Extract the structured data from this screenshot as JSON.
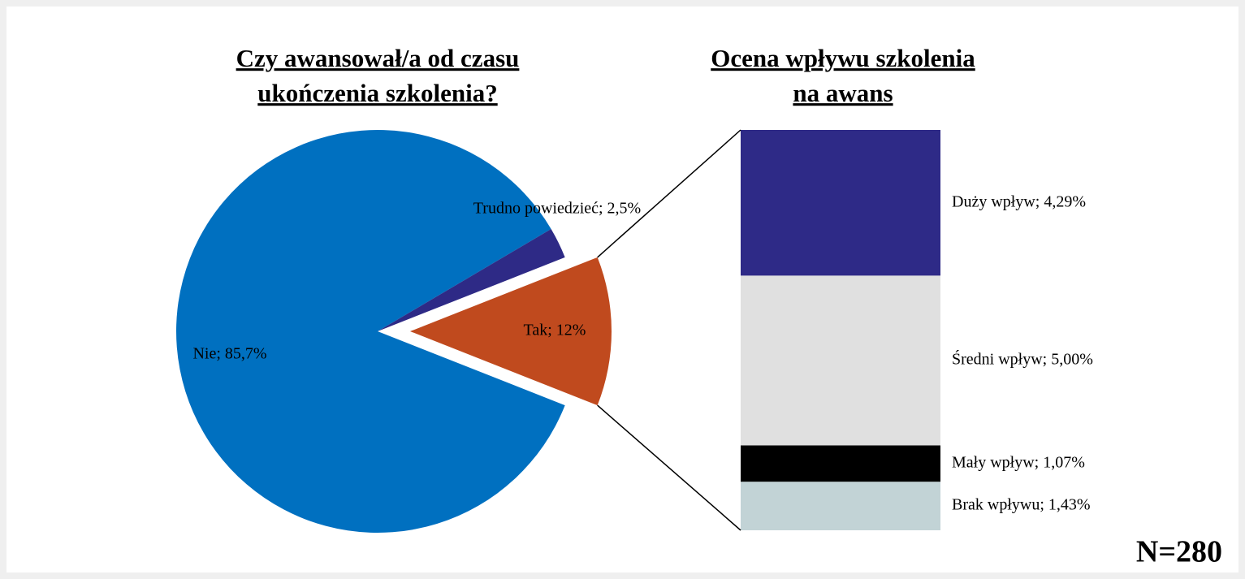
{
  "chart_data": [
    {
      "type": "pie",
      "title": [
        "Czy awansował/a od czasu",
        "ukończenia szkolenia?"
      ],
      "values": [
        12,
        85.7,
        2.5
      ],
      "value_labels": [
        "Tak; 12%",
        "Nie; 85,7%",
        "Trudno powiedzieć; 2,5%"
      ],
      "colors": [
        "#c04a1e",
        "#0070c0",
        "#2e2a86"
      ]
    },
    {
      "type": "stacked-bar",
      "title": [
        "Ocena wpływu szkolenia",
        "na awans"
      ],
      "values": [
        1.43,
        1.07,
        5.0,
        4.29
      ],
      "value_labels": [
        "Brak wpływu; 1,43%",
        "Mały wpływ; 1,07%",
        "Średni wpływ; 5,00%",
        "Duży wpływ; 4,29%"
      ],
      "colors": [
        "#c2d3d6",
        "#000000",
        "#e0e0e0",
        "#2e2a87"
      ],
      "annotation": "N=280"
    }
  ]
}
